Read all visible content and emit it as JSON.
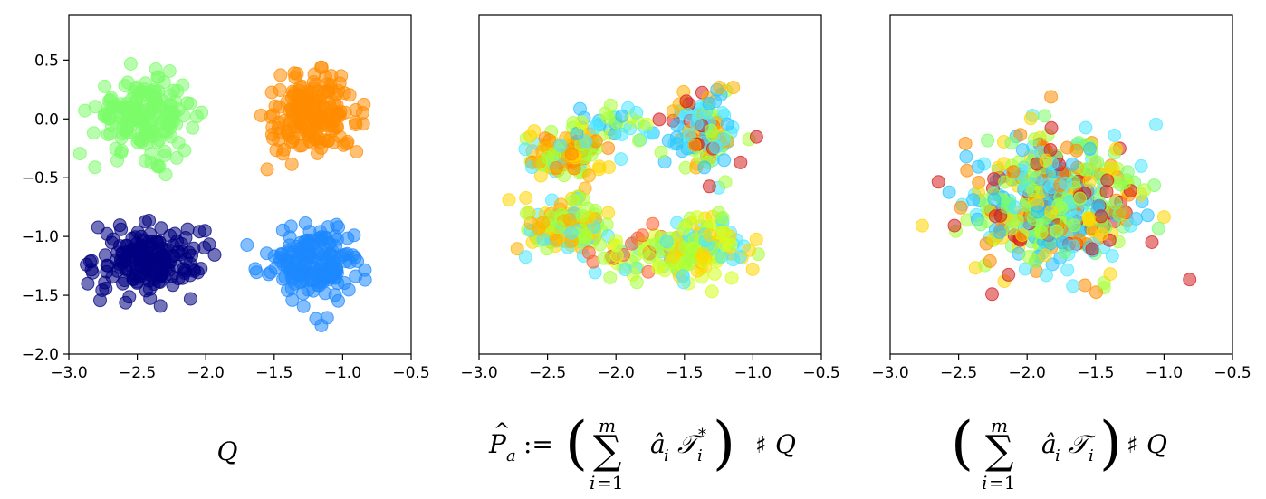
{
  "chart_data": [
    {
      "type": "scatter",
      "panel": "left",
      "caption": "Q",
      "xlim": [
        -3.0,
        -0.5
      ],
      "ylim": [
        -2.0,
        0.88
      ],
      "xticks": [
        "−3.0",
        "−2.5",
        "−2.0",
        "−1.5",
        "−1.0",
        "−0.5"
      ],
      "yticks": [
        "0.5",
        "0.0",
        "−0.5",
        "−1.0",
        "−1.5",
        "−2.0"
      ],
      "show_yticks": true,
      "grid": false,
      "marker_alpha": 0.55,
      "clusters": [
        {
          "color": "#7cfc6a",
          "center": [
            -2.45,
            0.03
          ],
          "spread": [
            0.18,
            0.16
          ],
          "n": 180
        },
        {
          "color": "#ff8c00",
          "center": [
            -1.22,
            0.03
          ],
          "spread": [
            0.17,
            0.16
          ],
          "n": 180
        },
        {
          "color": "#000080",
          "center": [
            -2.42,
            -1.2
          ],
          "spread": [
            0.19,
            0.15
          ],
          "n": 180
        },
        {
          "color": "#1e88ff",
          "center": [
            -1.2,
            -1.22
          ],
          "spread": [
            0.17,
            0.16
          ],
          "n": 180
        }
      ]
    },
    {
      "type": "scatter",
      "panel": "middle",
      "caption": "P̂ₐ := (Σᵢ₌₁ᵐ âᵢ 𝒯ᵢ*) ♯Q",
      "xlim": [
        -3.0,
        -0.5
      ],
      "ylim": [
        -2.0,
        0.88
      ],
      "xticks": [
        "−3.0",
        "−2.5",
        "−2.0",
        "−1.5",
        "−1.0",
        "−0.5"
      ],
      "show_yticks": false,
      "grid": false,
      "marker_alpha": 0.55,
      "clusters": [
        {
          "colors": [
            "#ffd700",
            "#ffb000",
            "#4fe8ff",
            "#a8ff3a",
            "#ff8c00"
          ],
          "center": [
            -2.38,
            -0.3
          ],
          "spread": [
            0.14,
            0.1
          ],
          "n": 130
        },
        {
          "colors": [
            "#4fe8ff",
            "#a8ff3a",
            "#d4ff1e",
            "#2ec4ff"
          ],
          "center": [
            -2.0,
            -0.05
          ],
          "spread": [
            0.16,
            0.08
          ],
          "n": 35
        },
        {
          "colors": [
            "#d62020",
            "#4fe8ff",
            "#a8ff3a",
            "#ffb000",
            "#2ec4ff"
          ],
          "center": [
            -1.35,
            -0.1
          ],
          "spread": [
            0.12,
            0.16
          ],
          "n": 130
        },
        {
          "colors": [
            "#ffd700",
            "#ffb000",
            "#4fe8ff",
            "#a8ff3a"
          ],
          "center": [
            -2.35,
            -0.92
          ],
          "spread": [
            0.15,
            0.12
          ],
          "n": 140
        },
        {
          "colors": [
            "#a8ff3a",
            "#d4ff1e",
            "#4fe8ff",
            "#ff6030"
          ],
          "center": [
            -1.85,
            -1.15
          ],
          "spread": [
            0.16,
            0.1
          ],
          "n": 60
        },
        {
          "colors": [
            "#d4ff1e",
            "#a8ff3a",
            "#4fe8ff",
            "#ffd700"
          ],
          "center": [
            -1.35,
            -1.1
          ],
          "spread": [
            0.16,
            0.13
          ],
          "n": 140
        }
      ]
    },
    {
      "type": "scatter",
      "panel": "right",
      "caption": "(Σᵢ₌₁ᵐ âᵢ 𝒯ᵢ) ♯Q",
      "xlim": [
        -3.0,
        -0.5
      ],
      "ylim": [
        -2.0,
        0.88
      ],
      "xticks": [
        "−3.0",
        "−2.5",
        "−2.0",
        "−1.5",
        "−1.0",
        "−0.5"
      ],
      "show_yticks": false,
      "grid": false,
      "marker_alpha": 0.55,
      "clusters": [
        {
          "colors": [
            "#d62020",
            "#4fe8ff",
            "#a8ff3a",
            "#ffd700",
            "#ff8c00",
            "#2ec4ff",
            "#7cfc6a"
          ],
          "center": [
            -1.78,
            -0.7
          ],
          "spread": [
            0.3,
            0.28
          ],
          "n": 520
        }
      ]
    }
  ]
}
